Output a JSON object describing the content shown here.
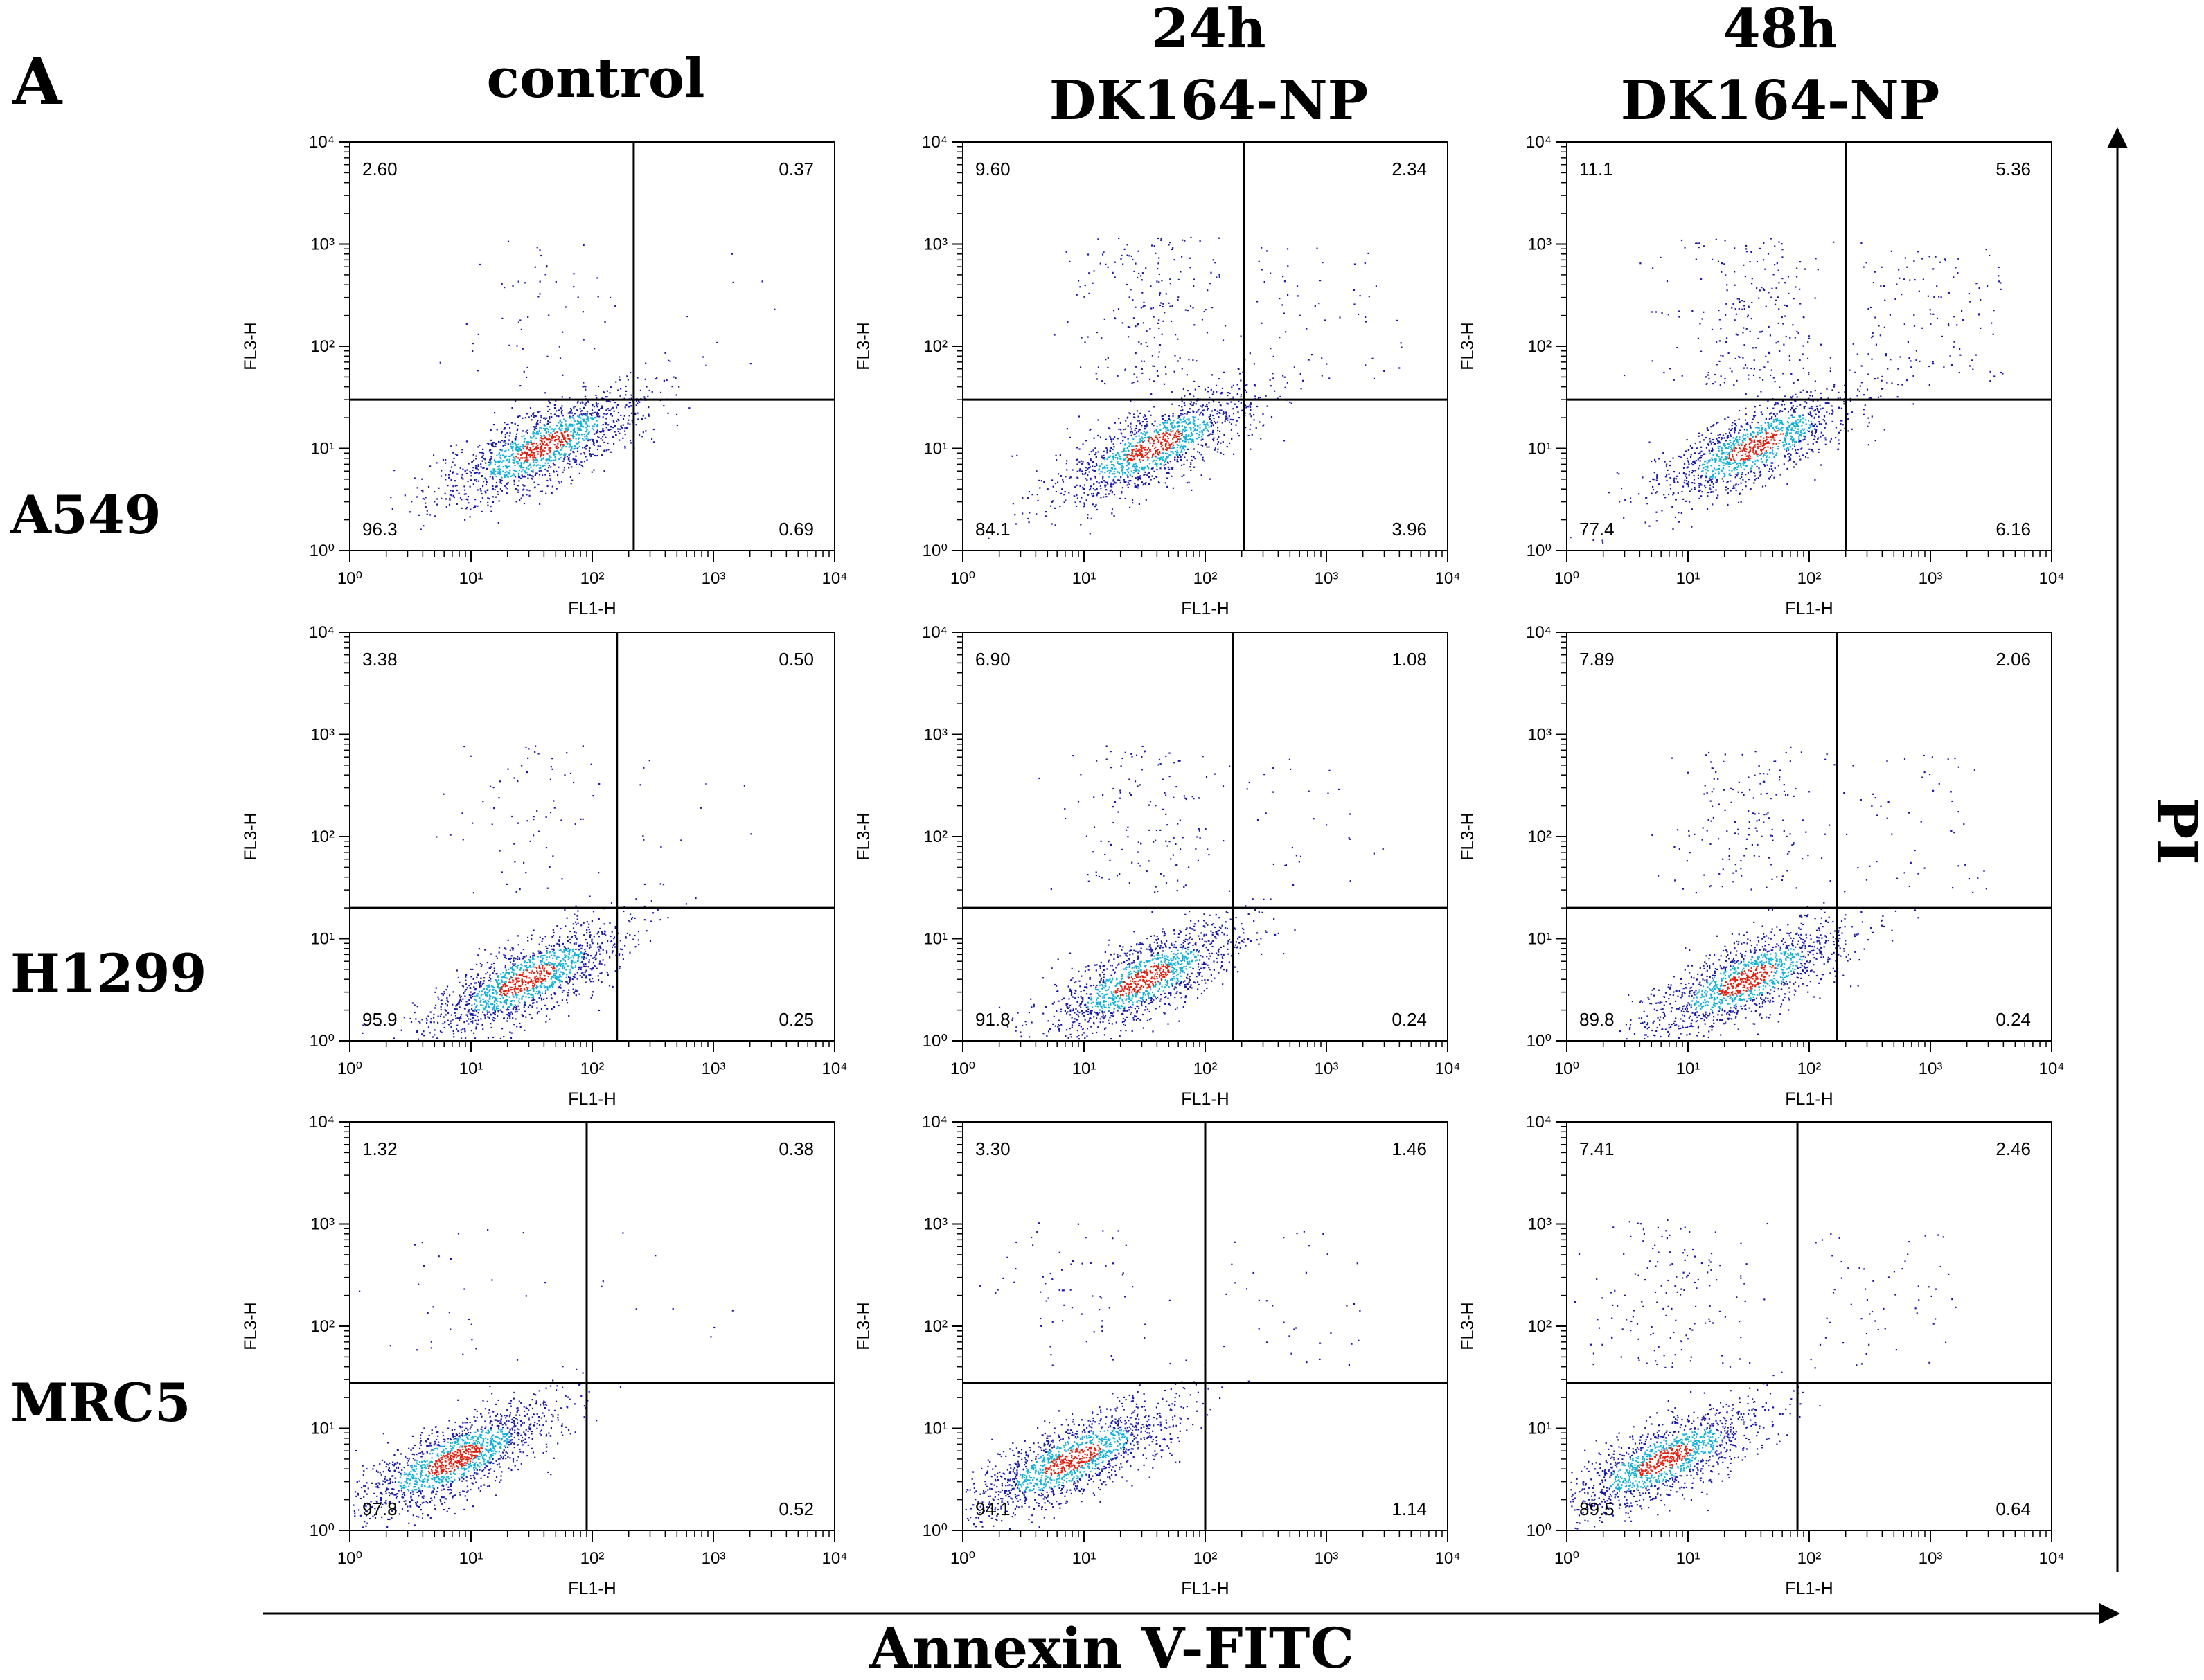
{
  "figure": {
    "panel_label": "A",
    "x_axis_title": "Annexin V-FITC",
    "y_axis_title": "PI",
    "column_headers": [
      {
        "line1": "",
        "line2": "control"
      },
      {
        "line1": "24h",
        "line2": "DK164-NP"
      },
      {
        "line1": "48h",
        "line2": "DK164-NP"
      }
    ],
    "row_labels": [
      "A549",
      "H1299",
      "MRC5"
    ],
    "plot_xlabel": "FL1-H",
    "plot_ylabel": "FL3-H",
    "colors": {
      "density_low": "#1a1aa8",
      "density_mid": "#10b0d8",
      "density_high": "#e02010",
      "gate_line": "#000000"
    }
  },
  "chart_data": [
    {
      "type": "scatter",
      "title": "A549 control",
      "xlabel": "FL1-H",
      "ylabel": "FL3-H",
      "xscale": "log",
      "yscale": "log",
      "xlim": [
        1,
        10000
      ],
      "ylim": [
        1,
        10000
      ],
      "x_ticks": [
        "10⁰",
        "10¹",
        "10²",
        "10³",
        "10⁴"
      ],
      "y_ticks": [
        "10⁰",
        "10¹",
        "10²",
        "10³",
        "10⁴"
      ],
      "quadrant_gate": {
        "x": 220,
        "y": 30
      },
      "quadrant_percent": {
        "upper_left": "2.60",
        "upper_right": "0.37",
        "lower_left": "96.3",
        "lower_right": "0.69"
      }
    },
    {
      "type": "scatter",
      "title": "A549 24h DK164-NP",
      "xlabel": "FL1-H",
      "ylabel": "FL3-H",
      "xscale": "log",
      "yscale": "log",
      "xlim": [
        1,
        10000
      ],
      "ylim": [
        1,
        10000
      ],
      "x_ticks": [
        "10⁰",
        "10¹",
        "10²",
        "10³",
        "10⁴"
      ],
      "y_ticks": [
        "10⁰",
        "10¹",
        "10²",
        "10³",
        "10⁴"
      ],
      "quadrant_gate": {
        "x": 210,
        "y": 30
      },
      "quadrant_percent": {
        "upper_left": "9.60",
        "upper_right": "2.34",
        "lower_left": "84.1",
        "lower_right": "3.96"
      }
    },
    {
      "type": "scatter",
      "title": "A549 48h DK164-NP",
      "xlabel": "FL1-H",
      "ylabel": "FL3-H",
      "xscale": "log",
      "yscale": "log",
      "xlim": [
        1,
        10000
      ],
      "ylim": [
        1,
        10000
      ],
      "x_ticks": [
        "10⁰",
        "10¹",
        "10²",
        "10³",
        "10⁴"
      ],
      "y_ticks": [
        "10⁰",
        "10¹",
        "10²",
        "10³",
        "10⁴"
      ],
      "quadrant_gate": {
        "x": 200,
        "y": 30
      },
      "quadrant_percent": {
        "upper_left": "11.1",
        "upper_right": "5.36",
        "lower_left": "77.4",
        "lower_right": "6.16"
      }
    },
    {
      "type": "scatter",
      "title": "H1299 control",
      "xlabel": "FL1-H",
      "ylabel": "FL3-H",
      "xscale": "log",
      "yscale": "log",
      "xlim": [
        1,
        10000
      ],
      "ylim": [
        1,
        10000
      ],
      "x_ticks": [
        "10⁰",
        "10¹",
        "10²",
        "10³",
        "10⁴"
      ],
      "y_ticks": [
        "10⁰",
        "10¹",
        "10²",
        "10³",
        "10⁴"
      ],
      "quadrant_gate": {
        "x": 160,
        "y": 20
      },
      "quadrant_percent": {
        "upper_left": "3.38",
        "upper_right": "0.50",
        "lower_left": "95.9",
        "lower_right": "0.25"
      }
    },
    {
      "type": "scatter",
      "title": "H1299 24h DK164-NP",
      "xlabel": "FL1-H",
      "ylabel": "FL3-H",
      "xscale": "log",
      "yscale": "log",
      "xlim": [
        1,
        10000
      ],
      "ylim": [
        1,
        10000
      ],
      "x_ticks": [
        "10⁰",
        "10¹",
        "10²",
        "10³",
        "10⁴"
      ],
      "y_ticks": [
        "10⁰",
        "10¹",
        "10²",
        "10³",
        "10⁴"
      ],
      "quadrant_gate": {
        "x": 170,
        "y": 20
      },
      "quadrant_percent": {
        "upper_left": "6.90",
        "upper_right": "1.08",
        "lower_left": "91.8",
        "lower_right": "0.24"
      }
    },
    {
      "type": "scatter",
      "title": "H1299 48h DK164-NP",
      "xlabel": "FL1-H",
      "ylabel": "FL3-H",
      "xscale": "log",
      "yscale": "log",
      "xlim": [
        1,
        10000
      ],
      "ylim": [
        1,
        10000
      ],
      "x_ticks": [
        "10⁰",
        "10¹",
        "10²",
        "10³",
        "10⁴"
      ],
      "y_ticks": [
        "10⁰",
        "10¹",
        "10²",
        "10³",
        "10⁴"
      ],
      "quadrant_gate": {
        "x": 170,
        "y": 20
      },
      "quadrant_percent": {
        "upper_left": "7.89",
        "upper_right": "2.06",
        "lower_left": "89.8",
        "lower_right": "0.24"
      }
    },
    {
      "type": "scatter",
      "title": "MRC5 control",
      "xlabel": "FL1-H",
      "ylabel": "FL3-H",
      "xscale": "log",
      "yscale": "log",
      "xlim": [
        1,
        10000
      ],
      "ylim": [
        1,
        10000
      ],
      "x_ticks": [
        "10⁰",
        "10¹",
        "10²",
        "10³",
        "10⁴"
      ],
      "y_ticks": [
        "10⁰",
        "10¹",
        "10²",
        "10³",
        "10⁴"
      ],
      "quadrant_gate": {
        "x": 90,
        "y": 28
      },
      "quadrant_percent": {
        "upper_left": "1.32",
        "upper_right": "0.38",
        "lower_left": "97.8",
        "lower_right": "0.52"
      }
    },
    {
      "type": "scatter",
      "title": "MRC5 24h DK164-NP",
      "xlabel": "FL1-H",
      "ylabel": "FL3-H",
      "xscale": "log",
      "yscale": "log",
      "xlim": [
        1,
        10000
      ],
      "ylim": [
        1,
        10000
      ],
      "x_ticks": [
        "10⁰",
        "10¹",
        "10²",
        "10³",
        "10⁴"
      ],
      "y_ticks": [
        "10⁰",
        "10¹",
        "10²",
        "10³",
        "10⁴"
      ],
      "quadrant_gate": {
        "x": 100,
        "y": 28
      },
      "quadrant_percent": {
        "upper_left": "3.30",
        "upper_right": "1.46",
        "lower_left": "94.1",
        "lower_right": "1.14"
      }
    },
    {
      "type": "scatter",
      "title": "MRC5 48h DK164-NP",
      "xlabel": "FL1-H",
      "ylabel": "FL3-H",
      "xscale": "log",
      "yscale": "log",
      "xlim": [
        1,
        10000
      ],
      "ylim": [
        1,
        10000
      ],
      "x_ticks": [
        "10⁰",
        "10¹",
        "10²",
        "10³",
        "10⁴"
      ],
      "y_ticks": [
        "10⁰",
        "10¹",
        "10²",
        "10³",
        "10⁴"
      ],
      "quadrant_gate": {
        "x": 80,
        "y": 28
      },
      "quadrant_percent": {
        "upper_left": "7.41",
        "upper_right": "2.46",
        "lower_left": "89.5",
        "lower_right": "0.64"
      }
    }
  ]
}
